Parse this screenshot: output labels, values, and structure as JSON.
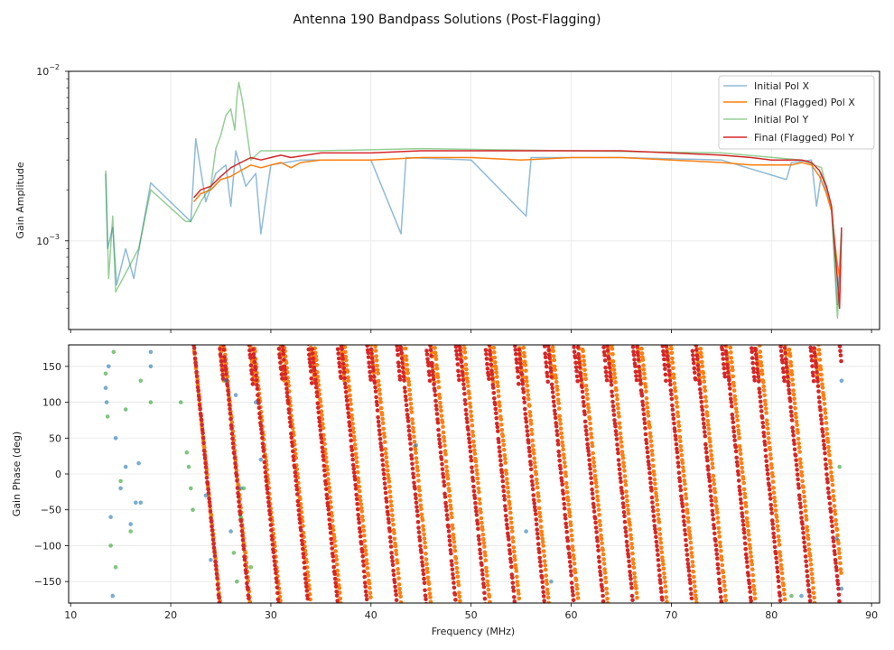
{
  "chart_data": {
    "title": "Antenna 190 Bandpass Solutions (Post-Flagging)",
    "panels": [
      {
        "type": "line",
        "ylabel": "Gain Amplitude",
        "yscale": "log",
        "ylim": [
          0.0003,
          0.01
        ],
        "xlim": [
          9.8,
          90.8
        ],
        "y_tick_labels": [
          {
            "base": "10",
            "exp": "−2"
          },
          {
            "base": "10",
            "exp": "−3"
          }
        ],
        "legend": {
          "position": "top-right",
          "entries": [
            "Initial Pol X",
            "Final (Flagged) Pol X",
            "Initial Pol Y",
            "Final (Flagged) Pol Y"
          ]
        },
        "series": [
          {
            "name": "Initial Pol X",
            "color": "#1f77b4",
            "alpha": 0.5,
            "points": [
              [
                13.5,
                0.0025
              ],
              [
                13.7,
                0.0009
              ],
              [
                14.2,
                0.0012
              ],
              [
                14.6,
                0.00055
              ],
              [
                15.5,
                0.0009
              ],
              [
                16.3,
                0.0006
              ],
              [
                18.0,
                0.0022
              ],
              [
                22.0,
                0.0013
              ],
              [
                22.5,
                0.004
              ],
              [
                23.5,
                0.0017
              ],
              [
                24.5,
                0.0025
              ],
              [
                25.5,
                0.0028
              ],
              [
                26.0,
                0.0016
              ],
              [
                26.5,
                0.0034
              ],
              [
                27.5,
                0.0021
              ],
              [
                28.5,
                0.0025
              ],
              [
                29.0,
                0.0011
              ],
              [
                30.0,
                0.0028
              ],
              [
                33.0,
                0.003
              ],
              [
                40.0,
                0.003
              ],
              [
                43.0,
                0.0011
              ],
              [
                43.5,
                0.0031
              ],
              [
                50.0,
                0.003
              ],
              [
                55.5,
                0.0014
              ],
              [
                56.0,
                0.0031
              ],
              [
                65.0,
                0.0031
              ],
              [
                75.0,
                0.003
              ],
              [
                81.5,
                0.0023
              ],
              [
                82.0,
                0.0029
              ],
              [
                84.0,
                0.003
              ],
              [
                84.5,
                0.0016
              ],
              [
                85.0,
                0.0025
              ],
              [
                86.0,
                0.0015
              ],
              [
                86.6,
                0.00042
              ],
              [
                87.0,
                0.0012
              ]
            ]
          },
          {
            "name": "Final (Flagged) Pol X",
            "color": "#ff7f0e",
            "alpha": 1,
            "points": [
              [
                22.3,
                0.0017
              ],
              [
                23.0,
                0.0019
              ],
              [
                24.0,
                0.002
              ],
              [
                25.0,
                0.0023
              ],
              [
                26.0,
                0.0024
              ],
              [
                27.0,
                0.0026
              ],
              [
                28.0,
                0.0028
              ],
              [
                29.0,
                0.0027
              ],
              [
                30.0,
                0.0028
              ],
              [
                31.0,
                0.0029
              ],
              [
                32.0,
                0.0027
              ],
              [
                33.0,
                0.0029
              ],
              [
                35.0,
                0.003
              ],
              [
                40.0,
                0.003
              ],
              [
                45.0,
                0.0031
              ],
              [
                50.0,
                0.0031
              ],
              [
                55.0,
                0.003
              ],
              [
                60.0,
                0.0031
              ],
              [
                65.0,
                0.0031
              ],
              [
                70.0,
                0.003
              ],
              [
                75.0,
                0.0029
              ],
              [
                78.0,
                0.0028
              ],
              [
                80.0,
                0.0028
              ],
              [
                82.0,
                0.0028
              ],
              [
                83.0,
                0.0029
              ],
              [
                84.0,
                0.0028
              ],
              [
                84.8,
                0.0024
              ],
              [
                85.5,
                0.0019
              ],
              [
                86.0,
                0.0015
              ],
              [
                86.5,
                0.0008
              ],
              [
                86.8,
                0.0006
              ],
              [
                87.0,
                0.0011
              ]
            ]
          },
          {
            "name": "Initial Pol Y",
            "color": "#2ca02c",
            "alpha": 0.5,
            "points": [
              [
                13.5,
                0.0026
              ],
              [
                13.8,
                0.0006
              ],
              [
                14.2,
                0.0014
              ],
              [
                14.5,
                0.0005
              ],
              [
                16.8,
                0.0009
              ],
              [
                18.0,
                0.002
              ],
              [
                21.5,
                0.0013
              ],
              [
                22.0,
                0.0013
              ],
              [
                23.0,
                0.0017
              ],
              [
                24.0,
                0.0021
              ],
              [
                24.5,
                0.0035
              ],
              [
                25.0,
                0.0042
              ],
              [
                25.5,
                0.0055
              ],
              [
                26.0,
                0.006
              ],
              [
                26.4,
                0.0045
              ],
              [
                26.6,
                0.007
              ],
              [
                26.8,
                0.0086
              ],
              [
                27.2,
                0.0065
              ],
              [
                28.0,
                0.003
              ],
              [
                29.0,
                0.0034
              ],
              [
                35.0,
                0.0034
              ],
              [
                45.0,
                0.0035
              ],
              [
                60.0,
                0.0034
              ],
              [
                75.0,
                0.0033
              ],
              [
                83.0,
                0.003
              ],
              [
                85.0,
                0.0027
              ],
              [
                86.0,
                0.0016
              ],
              [
                86.6,
                0.00035
              ],
              [
                87.0,
                0.0011
              ]
            ]
          },
          {
            "name": "Final (Flagged) Pol Y",
            "color": "#d62728",
            "alpha": 1,
            "points": [
              [
                22.3,
                0.0018
              ],
              [
                23.0,
                0.002
              ],
              [
                24.0,
                0.0021
              ],
              [
                25.0,
                0.0024
              ],
              [
                26.0,
                0.0027
              ],
              [
                27.0,
                0.0029
              ],
              [
                28.0,
                0.0031
              ],
              [
                29.0,
                0.003
              ],
              [
                30.0,
                0.0031
              ],
              [
                31.0,
                0.0032
              ],
              [
                32.0,
                0.0031
              ],
              [
                35.0,
                0.0033
              ],
              [
                40.0,
                0.0033
              ],
              [
                45.0,
                0.0034
              ],
              [
                50.0,
                0.0034
              ],
              [
                55.0,
                0.0034
              ],
              [
                60.0,
                0.0034
              ],
              [
                65.0,
                0.0034
              ],
              [
                70.0,
                0.0033
              ],
              [
                75.0,
                0.0032
              ],
              [
                78.0,
                0.0031
              ],
              [
                80.0,
                0.003
              ],
              [
                82.0,
                0.003
              ],
              [
                83.0,
                0.003
              ],
              [
                84.0,
                0.0029
              ],
              [
                84.8,
                0.0026
              ],
              [
                85.5,
                0.0021
              ],
              [
                86.0,
                0.0016
              ],
              [
                86.5,
                0.0007
              ],
              [
                86.8,
                0.0004
              ],
              [
                87.0,
                0.0012
              ]
            ]
          }
        ]
      },
      {
        "type": "scatter",
        "ylabel": "Gain Phase (deg)",
        "xlabel": "Frequency (MHz)",
        "xlim": [
          9.8,
          90.8
        ],
        "ylim": [
          -180,
          180
        ],
        "x_ticks": [
          10,
          20,
          30,
          40,
          50,
          60,
          70,
          80,
          90
        ],
        "x_tick_labels": [
          "10",
          "20",
          "30",
          "40",
          "50",
          "60",
          "70",
          "80",
          "90"
        ],
        "y_ticks": [
          -150,
          -100,
          -50,
          0,
          50,
          100,
          150
        ],
        "y_tick_labels": [
          "−150",
          "−100",
          "−50",
          "0",
          "50",
          "100",
          "150"
        ],
        "wraps": [
          {
            "start_mhz": 22.3,
            "period_mhz": 2.95,
            "slope_deg_per_mhz": -140,
            "end_mhz": 87.0
          }
        ],
        "series": [
          {
            "name": "Initial Pol X",
            "color": "#1f77b4",
            "alpha": 0.6,
            "points": [
              [
                13.5,
                120
              ],
              [
                13.6,
                100
              ],
              [
                13.8,
                150
              ],
              [
                14.0,
                -60
              ],
              [
                14.2,
                -170
              ],
              [
                14.5,
                50
              ],
              [
                15.0,
                -20
              ],
              [
                15.5,
                10
              ],
              [
                16.0,
                -70
              ],
              [
                16.5,
                -40
              ],
              [
                16.8,
                15
              ],
              [
                17.0,
                -40
              ],
              [
                18.0,
                170
              ],
              [
                18.0,
                150
              ],
              [
                23.5,
                -30
              ],
              [
                24.0,
                -120
              ],
              [
                25.5,
                130
              ],
              [
                26.0,
                -80
              ],
              [
                26.5,
                110
              ],
              [
                27.0,
                -20
              ],
              [
                28.5,
                100
              ],
              [
                29.0,
                20
              ],
              [
                44.5,
                40
              ],
              [
                55.5,
                -80
              ],
              [
                58.0,
                -150
              ],
              [
                83.0,
                -170
              ],
              [
                86.5,
                -90
              ],
              [
                87.0,
                -160
              ],
              [
                87.0,
                130
              ]
            ]
          },
          {
            "name": "Final (Flagged) Pol X",
            "color": "#ff7f0e",
            "alpha": 1,
            "phase_offset_mhz": 0.45
          },
          {
            "name": "Initial Pol Y",
            "color": "#2ca02c",
            "alpha": 0.6,
            "points": [
              [
                13.5,
                140
              ],
              [
                13.7,
                80
              ],
              [
                14.0,
                -100
              ],
              [
                14.3,
                170
              ],
              [
                14.5,
                -130
              ],
              [
                15.0,
                -10
              ],
              [
                15.5,
                90
              ],
              [
                16.0,
                -80
              ],
              [
                17.0,
                130
              ],
              [
                18.0,
                100
              ],
              [
                21.0,
                100
              ],
              [
                21.6,
                30
              ],
              [
                21.8,
                10
              ],
              [
                22.0,
                -20
              ],
              [
                22.2,
                -50
              ],
              [
                26.3,
                -110
              ],
              [
                26.6,
                -150
              ],
              [
                27.0,
                -60
              ],
              [
                27.3,
                -20
              ],
              [
                28.0,
                -130
              ],
              [
                82.0,
                -170
              ],
              [
                86.8,
                10
              ]
            ]
          },
          {
            "name": "Final (Flagged) Pol Y",
            "color": "#d62728",
            "alpha": 1,
            "phase_offset_mhz": 0.0
          }
        ]
      }
    ]
  }
}
